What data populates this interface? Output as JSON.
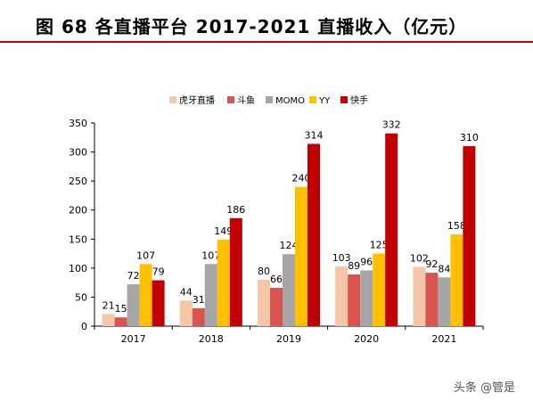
{
  "header": {
    "title": "图 68 各直播平台 2017-2021 直播收入（亿元）"
  },
  "watermark": {
    "text": "头条 @管是"
  },
  "colors": {
    "title_rule": "#c00000",
    "axis": "#000000"
  },
  "chart_data": {
    "type": "bar",
    "title": "",
    "xlabel": "",
    "ylabel": "",
    "categories": [
      "2017",
      "2018",
      "2019",
      "2020",
      "2021"
    ],
    "ylim": [
      0,
      350
    ],
    "yticks": [
      0,
      50,
      100,
      150,
      200,
      250,
      300,
      350
    ],
    "grid": false,
    "legend_position": "top",
    "series": [
      {
        "name": "虎牙直播",
        "color": "#f4c7a8",
        "values": [
          21,
          44,
          80,
          103,
          102
        ]
      },
      {
        "name": "斗鱼",
        "color": "#d9534f",
        "values": [
          15,
          31,
          66,
          89,
          92
        ]
      },
      {
        "name": "MOMO",
        "color": "#a6a6a6",
        "values": [
          72,
          107,
          124,
          96,
          84
        ]
      },
      {
        "name": "YY",
        "color": "#ffc000",
        "values": [
          107,
          149,
          240,
          125,
          158
        ]
      },
      {
        "name": "快手",
        "color": "#c00000",
        "values": [
          79,
          186,
          314,
          332,
          310
        ]
      }
    ]
  }
}
